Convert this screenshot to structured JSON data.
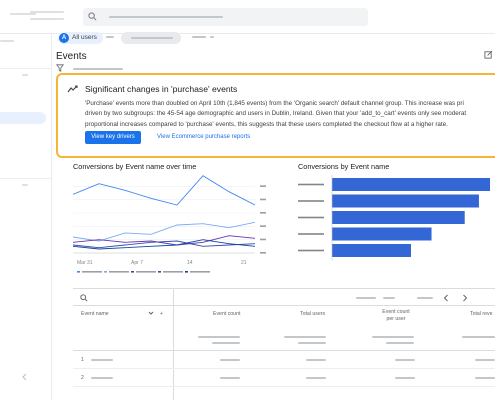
{
  "filter": {
    "chip_label": "All users",
    "chip_avatar": "A"
  },
  "page": {
    "title": "Events"
  },
  "insight": {
    "title": "Significant changes in 'purchase' events",
    "body_lines": [
      "'Purchase' events more than doubled on April 10th (1,845 events) from the 'Organic search' default channel group. This increase was pri",
      "driven by two subgroups: the 45-54 age demographic and users in Dublin, Ireland. Given that your 'add_to_cart' events only see moderat",
      "proportional increases compared to 'purchase' events, this suggests that these users completed the checkout flow at a higher rate."
    ],
    "primary_button": "View key drivers",
    "secondary_button": "View Ecommerce purchase reports",
    "accent_color": "#f6b537"
  },
  "line_chart": {
    "title": "Conversions by Event name over time",
    "x_ticks": [
      "Mar 31",
      "Apr 7",
      "14",
      "21"
    ]
  },
  "bar_chart": {
    "title": "Conversions by Event name",
    "bar_color": "#3367d6"
  },
  "table": {
    "headers": [
      "Event name",
      "Event count",
      "Total users",
      "Event count per user",
      "Total reve"
    ],
    "row_numbers": [
      "1",
      "2"
    ]
  },
  "chart_data": [
    {
      "type": "line",
      "title": "",
      "series": [
        {
          "color": "#4285f4",
          "values": [
            44,
            52,
            47,
            41,
            36,
            58,
            46,
            36
          ]
        },
        {
          "color": "#7baaf7",
          "values": [
            12,
            9,
            15,
            14,
            21,
            22,
            19,
            23
          ]
        },
        {
          "color": "#5e35b1",
          "values": [
            8,
            10,
            8,
            9,
            6,
            8,
            13,
            11
          ]
        },
        {
          "color": "#3949ab",
          "values": [
            6,
            4,
            6,
            8,
            9,
            5,
            6,
            7
          ]
        },
        {
          "color": "#0d47a1",
          "values": [
            5,
            3,
            4,
            5,
            6,
            10,
            7,
            5
          ]
        }
      ]
    },
    {
      "type": "bar",
      "title": "",
      "values": [
        100,
        93,
        84,
        63,
        50
      ]
    }
  ]
}
